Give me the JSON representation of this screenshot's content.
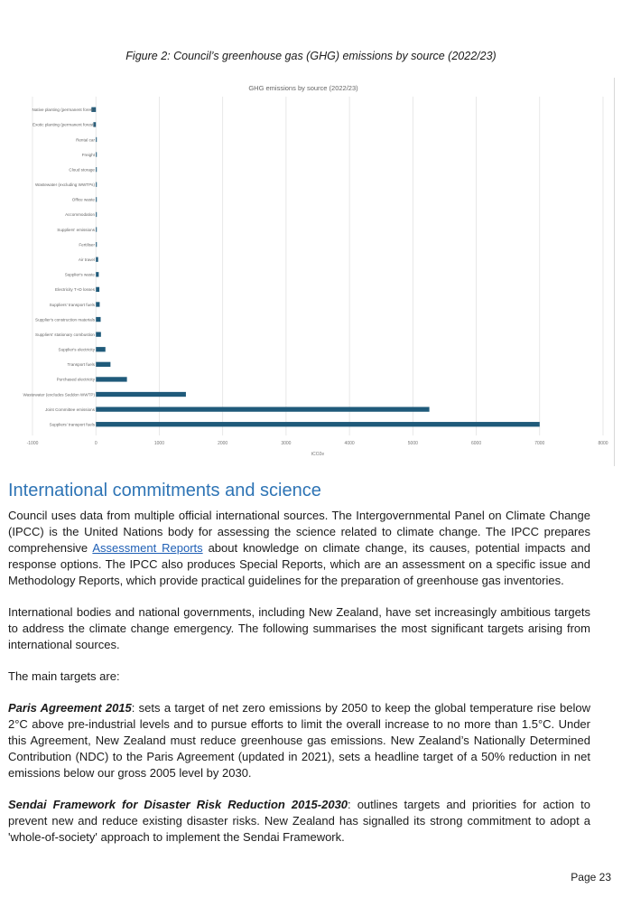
{
  "figure": {
    "caption": "Figure 2: Council’s greenhouse gas (GHG) emissions by source (2022/23)"
  },
  "chart_data": {
    "type": "bar",
    "orientation": "horizontal",
    "title": "GHG emissions by source (2022/23)",
    "xlabel": "tCO2e",
    "ylabel": "",
    "xlim": [
      -1000,
      8000
    ],
    "xticks": [
      -1000,
      0,
      1000,
      2000,
      3000,
      4000,
      5000,
      6000,
      7000,
      8000
    ],
    "grid": true,
    "bar_color": "#1f5a7a",
    "categories": [
      "Native planting (permanent forest)",
      "Exotic planting (permanent forest)",
      "Rental car",
      "Freight",
      "Cloud storage",
      "Wastewater (excluding WWTPs) ",
      "Office waste",
      "Accommodation",
      "Suppliers' emissions",
      "Fertiliser",
      "Air travel",
      "Supplier's waste",
      "Electricity T+D losses",
      "Suppliers' transport fuels",
      "Supplier's construction materials",
      "Suppliers' stationary combustion",
      "Supplier's electricity",
      "Transport fuels",
      "Purchased electricity",
      "Wastewater (excludes Seddon WWTP)",
      "Joint Committee emissions",
      "Suppliers' transport fuels"
    ],
    "values": [
      -70,
      -40,
      5,
      5,
      5,
      10,
      10,
      10,
      10,
      15,
      35,
      45,
      55,
      60,
      75,
      80,
      150,
      230,
      490,
      1420,
      5260,
      7000
    ]
  },
  "section": {
    "heading": "International commitments and science",
    "p1_before_link": "Council uses data from multiple official international sources. The Intergovernmental Panel on Climate Change (IPCC) is the United Nations body for assessing the science related to climate change.  The IPCC prepares comprehensive ",
    "p1_link": "Assessment Reports",
    "p1_after_link": " about knowledge on climate change, its causes, potential impacts and response options. The IPCC also produces Special Reports, which are an assessment on a specific issue and Methodology Reports, which provide practical guidelines for the preparation of greenhouse gas inventories.",
    "p2": "International bodies and national governments, including New Zealand, have set increasingly ambitious targets to address the climate change emergency. The following summarises the most significant targets arising from international sources.",
    "p3": "The main targets are:",
    "paris_title": "Paris Agreement 2015",
    "paris_text": ": sets a target of net zero emissions by 2050 to keep the global temperature rise below 2°C above pre-industrial levels and to pursue efforts to limit the overall increase to no more than 1.5°C. Under this Agreement, New Zealand must reduce greenhouse gas emissions. New Zealand’s Nationally Determined Contribution (NDC) to the Paris Agreement (updated in 2021), sets a headline target of a 50% reduction in net emissions below our gross 2005 level by 2030.",
    "sendai_title": "Sendai Framework for Disaster Risk Reduction 2015-2030",
    "sendai_text": ": outlines targets and priorities for action to prevent new and reduce existing disaster risks. New Zealand has signalled its strong commitment to adopt a 'whole-of-society' approach to implement the Sendai Framework."
  },
  "footer": {
    "page": "Page 23"
  }
}
